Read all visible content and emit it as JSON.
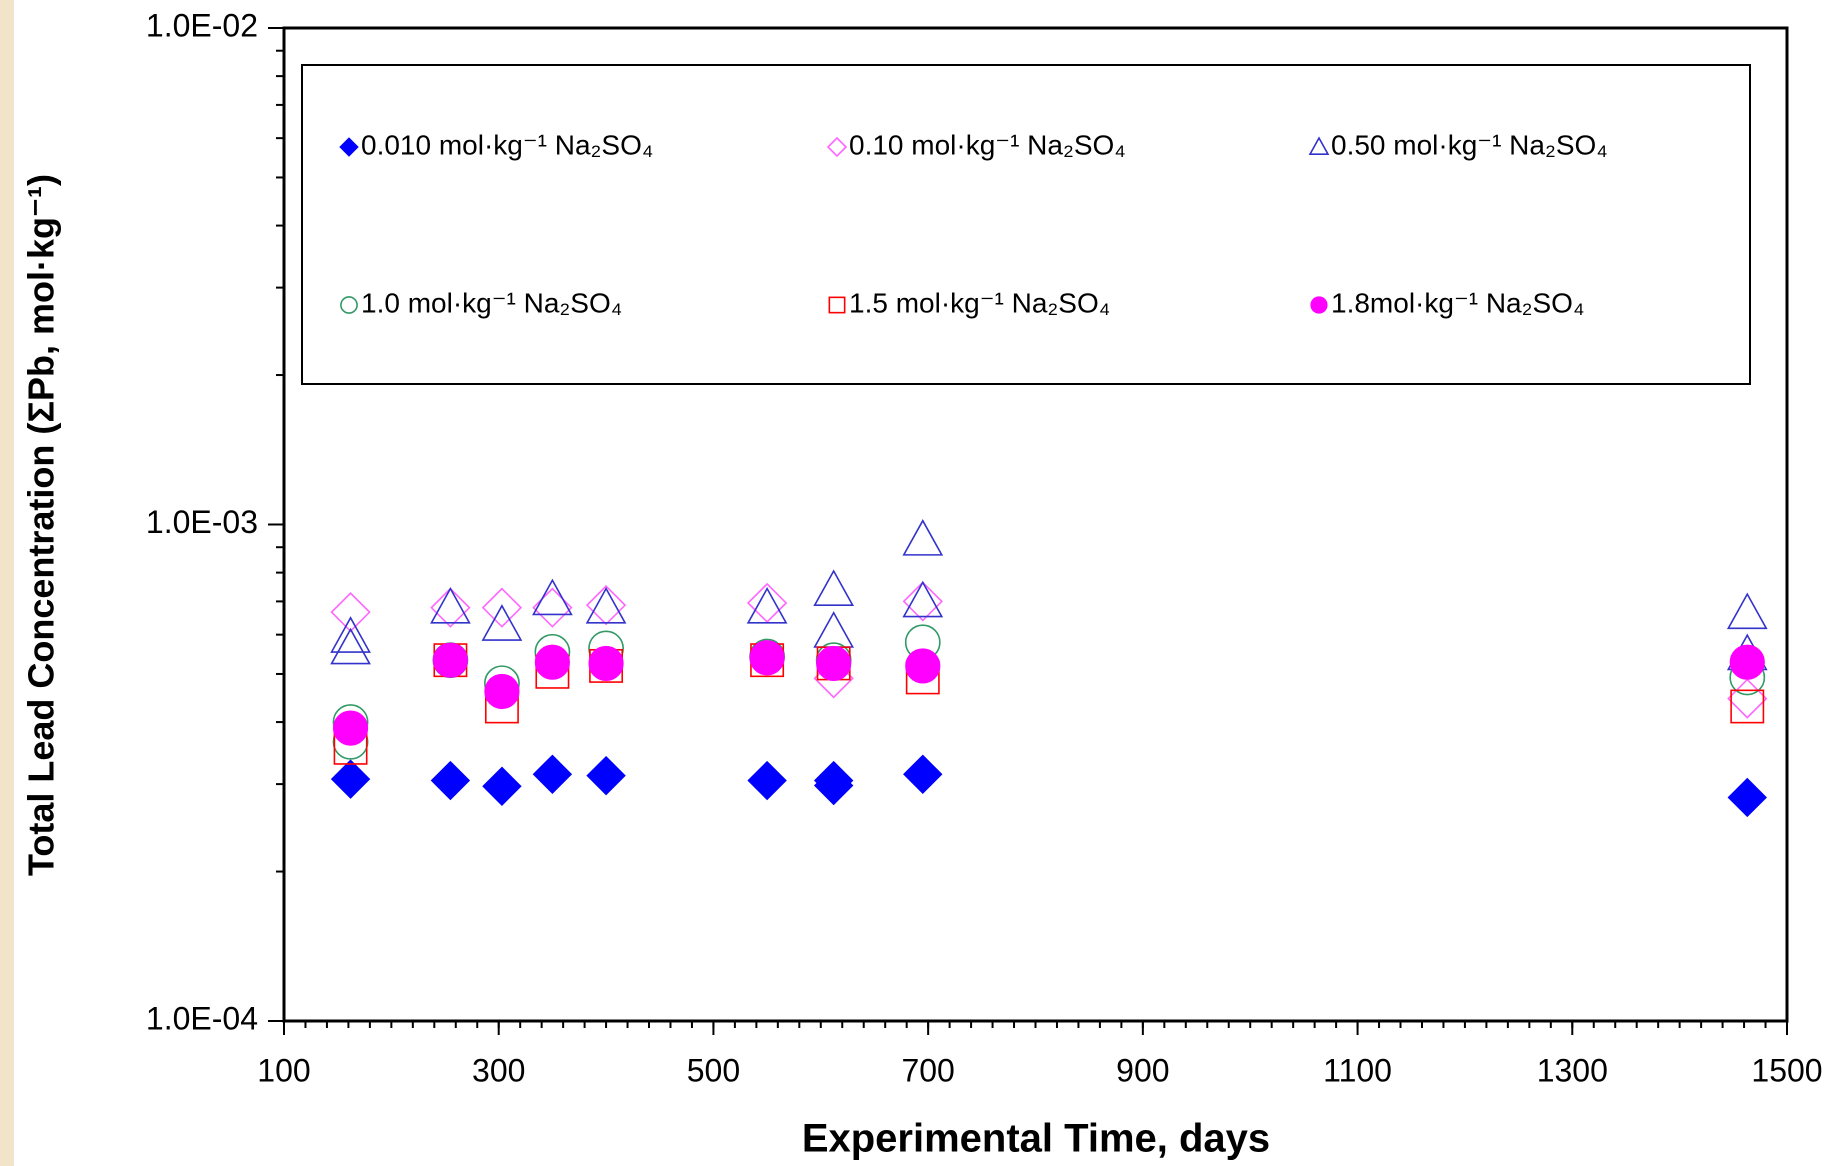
{
  "chart_data": {
    "type": "scatter",
    "xlabel": "Experimental Time, days",
    "ylabel": "Total Lead Concentration (ΣPb, mol·kg⁻¹)",
    "xlim": [
      100,
      1500
    ],
    "xticks": [
      100,
      300,
      500,
      700,
      900,
      1100,
      1300,
      1500
    ],
    "ylim": [
      0.0001,
      0.01
    ],
    "ylog": true,
    "yticks": [
      {
        "value": 0.0001,
        "label": "1.0E-04"
      },
      {
        "value": 0.001,
        "label": "1.0E-03"
      },
      {
        "value": 0.01,
        "label": "1.0E-02"
      }
    ],
    "legend": "top",
    "series": [
      {
        "name": "0.010 mol·kg⁻¹  Na₂SO₄",
        "color": "#0000ff",
        "marker": "diamond",
        "filled": true,
        "x": [
          162,
          255,
          303,
          350,
          400,
          550,
          612,
          612,
          695,
          1463
        ],
        "values": [
          0.000307,
          0.000305,
          0.000297,
          0.000314,
          0.000312,
          0.000305,
          0.000305,
          0.000298,
          0.000314,
          0.000282
        ]
      },
      {
        "name": "0.10 mol·kg⁻¹  Na₂SO₄",
        "color": "#ff66ff",
        "marker": "diamond",
        "filled": false,
        "x": [
          162,
          255,
          303,
          350,
          400,
          550,
          612,
          695,
          1463
        ],
        "values": [
          0.000666,
          0.00068,
          0.00068,
          0.00068,
          0.000688,
          0.000695,
          0.00049,
          0.0007,
          0.000446
        ]
      },
      {
        "name": "0.50 mol·kg⁻¹  Na₂SO₄",
        "color": "#3333cc",
        "marker": "triangle",
        "filled": false,
        "x": [
          162,
          162,
          255,
          303,
          350,
          400,
          550,
          612,
          612,
          695,
          695,
          1463,
          1463
        ],
        "values": [
          0.000594,
          0.000563,
          0.00068,
          0.000628,
          0.000707,
          0.00068,
          0.00068,
          0.000738,
          0.000608,
          0.000932,
          0.0007,
          0.000663,
          0.000548
        ]
      },
      {
        "name": "1.0 mol·kg⁻¹  Na₂SO₄",
        "color": "#339966",
        "marker": "circle",
        "filled": false,
        "x": [
          162,
          162,
          255,
          303,
          350,
          400,
          550,
          612,
          695,
          1463
        ],
        "values": [
          0.0004,
          0.000365,
          0.000533,
          0.000479,
          0.000554,
          0.000563,
          0.000542,
          0.000533,
          0.000579,
          0.000492
        ]
      },
      {
        "name": "1.5 mol·kg⁻¹  Na₂SO₄",
        "color": "#ff0000",
        "marker": "square",
        "filled": false,
        "x": [
          162,
          255,
          303,
          350,
          400,
          550,
          612,
          695,
          1463
        ],
        "values": [
          0.000355,
          0.000533,
          0.00043,
          0.000505,
          0.000519,
          0.000533,
          0.000525,
          0.000492,
          0.00043
        ]
      },
      {
        "name": "1.8mol·kg⁻¹  Na₂SO₄",
        "color": "#ff00ff",
        "marker": "circle",
        "filled": true,
        "x": [
          162,
          255,
          303,
          350,
          400,
          550,
          612,
          695,
          1463
        ],
        "values": [
          0.000389,
          0.000533,
          0.000461,
          0.000528,
          0.000525,
          0.000539,
          0.000525,
          0.000519,
          0.000528
        ]
      }
    ]
  }
}
